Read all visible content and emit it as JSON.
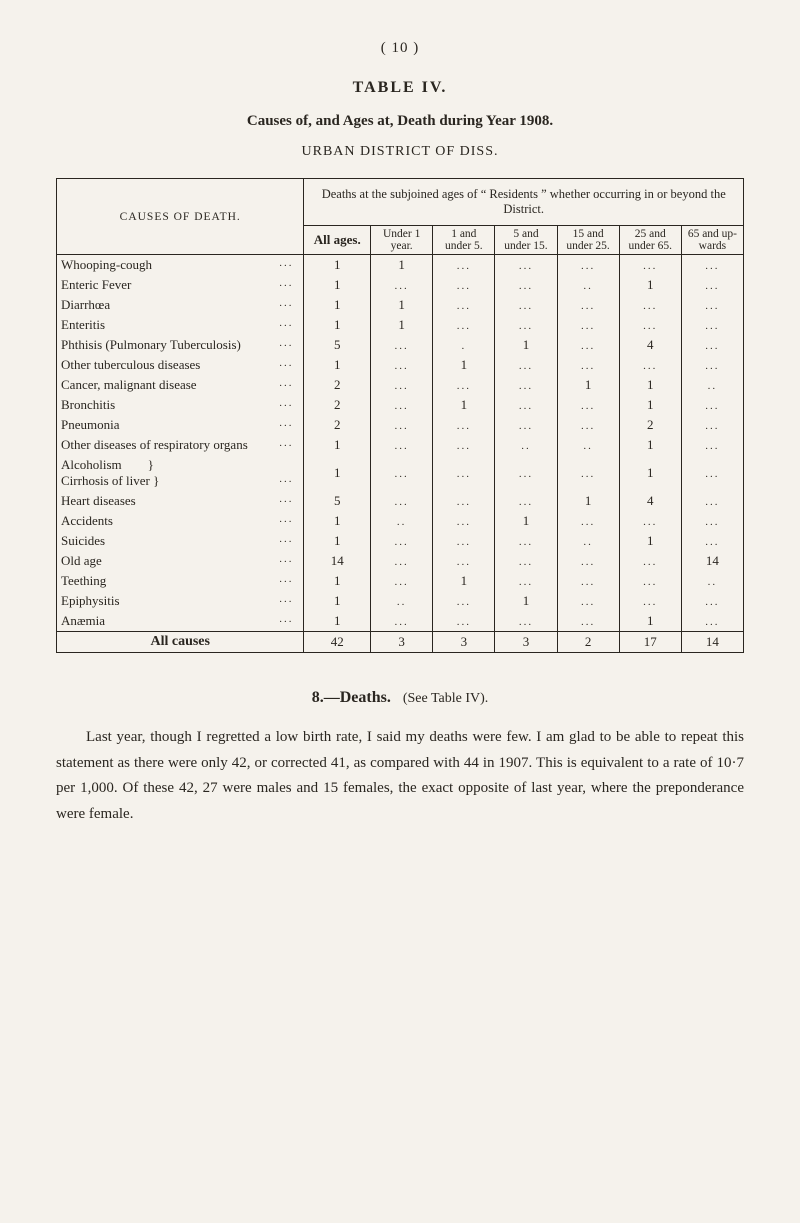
{
  "page_number": "( 10 )",
  "table_title": "TABLE IV.",
  "subtitle": "Causes of, and Ages at, Death during Year 1908.",
  "district": "URBAN DISTRICT OF DISS.",
  "header": {
    "causes_of_death": "CAUSES OF DEATH.",
    "deaths_intro": "Deaths at the subjoined ages of “ Residents ” whether occurring in or beyond the District.",
    "all_ages": "All ages.",
    "cols": [
      "Under 1 year.",
      "1 and under 5.",
      "5 and under 15.",
      "15 and under 25.",
      "25 and under 65.",
      "65 and up-wards"
    ]
  },
  "rows": [
    {
      "cause": "Whooping-cough",
      "all": "1",
      "c": [
        "1",
        "...",
        "...",
        "...",
        "...",
        "..."
      ]
    },
    {
      "cause": "Enteric Fever",
      "all": "1",
      "c": [
        "...",
        "...",
        "...",
        "..",
        "1",
        "..."
      ]
    },
    {
      "cause": "Diarrhœa",
      "all": "1",
      "c": [
        "1",
        "...",
        "...",
        "...",
        "...",
        "..."
      ]
    },
    {
      "cause": "Enteritis",
      "all": "1",
      "c": [
        "1",
        "...",
        "...",
        "...",
        "...",
        "..."
      ]
    },
    {
      "cause": "Phthisis (Pulmonary Tuberculosis)",
      "all": "5",
      "c": [
        "...",
        ".",
        "1",
        "...",
        "4",
        "..."
      ]
    },
    {
      "cause": "Other tuberculous diseases",
      "all": "1",
      "c": [
        "...",
        "1",
        "...",
        "...",
        "...",
        "..."
      ]
    },
    {
      "cause": "Cancer, malignant disease",
      "all": "2",
      "c": [
        "...",
        "...",
        "...",
        "1",
        "1",
        ".."
      ]
    },
    {
      "cause": "Bronchitis",
      "all": "2",
      "c": [
        "...",
        "1",
        "...",
        "...",
        "1",
        "..."
      ]
    },
    {
      "cause": "Pneumonia",
      "all": "2",
      "c": [
        "...",
        "...",
        "...",
        "...",
        "2",
        "..."
      ]
    },
    {
      "cause": "Other diseases of respiratory organs",
      "all": "1",
      "c": [
        "...",
        "...",
        "..",
        "..",
        "1",
        "..."
      ]
    },
    {
      "cause": "Heart diseases",
      "all": "5",
      "c": [
        "...",
        "...",
        "...",
        "1",
        "4",
        "..."
      ]
    },
    {
      "cause": "Accidents",
      "all": "1",
      "c": [
        "..",
        "...",
        "1",
        "...",
        "...",
        "..."
      ]
    },
    {
      "cause": "Suicides",
      "all": "1",
      "c": [
        "...",
        "...",
        "...",
        "..",
        "1",
        "..."
      ]
    },
    {
      "cause": "Old age",
      "all": "14",
      "c": [
        "...",
        "...",
        "...",
        "...",
        "...",
        "14"
      ]
    },
    {
      "cause": "Teething",
      "all": "1",
      "c": [
        "...",
        "1",
        "...",
        "...",
        "...",
        ".."
      ]
    },
    {
      "cause": "Epiphysitis",
      "all": "1",
      "c": [
        "..",
        "...",
        "1",
        "...",
        "...",
        "..."
      ]
    },
    {
      "cause": "Anæmia",
      "all": "1",
      "c": [
        "...",
        "...",
        "...",
        "...",
        "1",
        "..."
      ]
    }
  ],
  "alcoholism": {
    "label1": "Alcoholism",
    "label2": "Cirrhosis of liver",
    "all": "1",
    "c": [
      "...",
      "...",
      "...",
      "...",
      "1",
      "..."
    ]
  },
  "totals": {
    "label": "All causes",
    "all": "42",
    "c": [
      "3",
      "3",
      "3",
      "2",
      "17",
      "14"
    ]
  },
  "section": {
    "num": "8.—",
    "title": "Deaths.",
    "see": "(See Table IV).",
    "para": "Last year, though I regretted a low birth rate, I said my deaths were few. I am glad to be able to repeat this statement as there were only 42, or corrected 41, as compared with 44 in 1907. This is equivalent to a rate of 10·7 per 1,000. Of these 42, 27 were males and 15 females, the exact opposite of last year, where the preponderance were female."
  }
}
